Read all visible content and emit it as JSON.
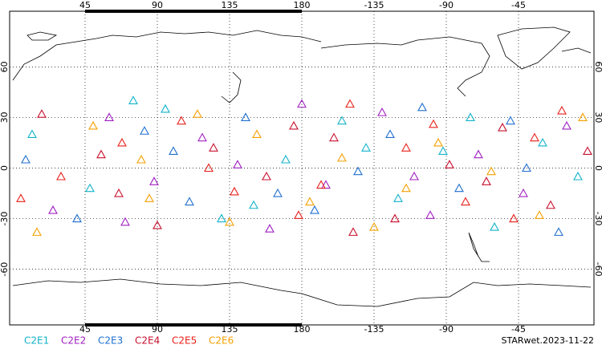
{
  "chart_data": {
    "type": "scatter",
    "xlim": [
      -2,
      362
    ],
    "ylim": [
      -93,
      93
    ],
    "xticks": [
      45,
      90,
      135,
      180,
      {
        "value": 225,
        "label": "-135"
      },
      {
        "value": 270,
        "label": "-90"
      },
      {
        "value": 315,
        "label": "-45"
      }
    ],
    "yticks": [
      60,
      30,
      0,
      -30,
      -60
    ],
    "grid": true,
    "footer": "STARwet.2023-11-22",
    "series": [
      {
        "name": "C2E1",
        "color": "#12b3c9",
        "x": [
          12,
          48,
          95,
          130,
          170,
          205,
          240,
          268,
          300,
          330,
          352,
          75,
          150,
          220,
          285
        ],
        "y": [
          20,
          -12,
          35,
          -30,
          5,
          28,
          -18,
          10,
          -35,
          15,
          -5,
          40,
          -22,
          12,
          30
        ]
      },
      {
        "name": "C2E2",
        "color": "#a020c0",
        "x": [
          25,
          60,
          88,
          118,
          160,
          195,
          230,
          260,
          290,
          318,
          345,
          140,
          180,
          250,
          70
        ],
        "y": [
          -25,
          30,
          -8,
          18,
          -36,
          -10,
          33,
          -28,
          8,
          -15,
          25,
          2,
          38,
          -5,
          -32
        ]
      },
      {
        "name": "C2E3",
        "color": "#1f6fd0",
        "x": [
          8,
          40,
          82,
          110,
          145,
          188,
          215,
          255,
          278,
          310,
          340,
          100,
          165,
          235,
          320
        ],
        "y": [
          5,
          -30,
          22,
          -20,
          30,
          -25,
          -2,
          36,
          -12,
          28,
          -38,
          10,
          -15,
          20,
          0
        ]
      },
      {
        "name": "C2E4",
        "color": "#c8102e",
        "x": [
          18,
          55,
          90,
          125,
          158,
          200,
          238,
          272,
          305,
          335,
          358,
          66,
          175,
          212,
          295
        ],
        "y": [
          32,
          8,
          -34,
          12,
          -5,
          18,
          -30,
          2,
          24,
          -22,
          10,
          -15,
          25,
          -38,
          -8
        ]
      },
      {
        "name": "C2E5",
        "color": "#e8201a",
        "x": [
          30,
          68,
          105,
          138,
          178,
          210,
          245,
          282,
          312,
          342,
          5,
          122,
          192,
          262,
          325
        ],
        "y": [
          -5,
          15,
          28,
          -14,
          -28,
          38,
          12,
          -20,
          -30,
          34,
          -18,
          0,
          -10,
          26,
          18
        ]
      },
      {
        "name": "C2E6",
        "color": "#f5a000",
        "x": [
          15,
          50,
          80,
          115,
          152,
          185,
          225,
          265,
          298,
          328,
          355,
          135,
          205,
          245,
          85
        ],
        "y": [
          -38,
          25,
          5,
          32,
          20,
          -20,
          -35,
          15,
          -2,
          -28,
          30,
          -32,
          6,
          -12,
          -18
        ]
      }
    ]
  }
}
